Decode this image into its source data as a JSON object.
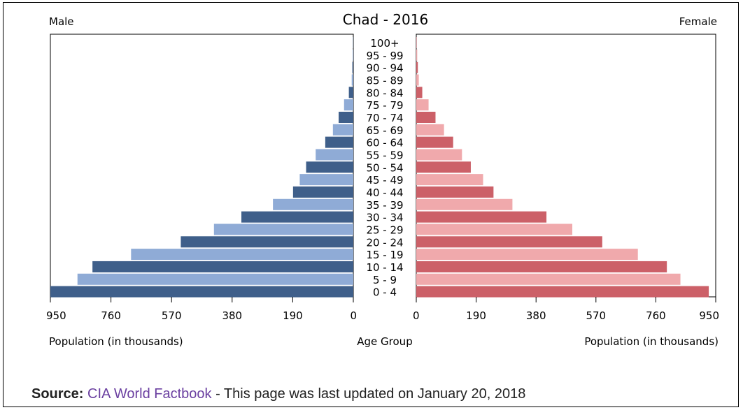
{
  "chart_data": {
    "type": "bar",
    "title": "Chad - 2016",
    "left_label": "Male",
    "right_label": "Female",
    "center_label": "Age Group",
    "xlabel_left": "Population (in thousands)",
    "xlabel_right": "Population (in thousands)",
    "xlim": [
      0,
      950
    ],
    "ticks": [
      "0",
      "190",
      "380",
      "570",
      "760",
      "950"
    ],
    "tick_values": [
      0,
      190,
      380,
      570,
      760,
      950
    ],
    "categories": [
      "100+",
      "95 - 99",
      "90 - 94",
      "85 - 89",
      "80 - 84",
      "75 - 79",
      "70 - 74",
      "65 - 69",
      "60 - 64",
      "55 - 59",
      "50 - 54",
      "45 - 49",
      "40 - 44",
      "35 - 39",
      "30 - 34",
      "25 - 29",
      "20 - 24",
      "15 - 19",
      "10 - 14",
      "5 - 9",
      "0 - 4"
    ],
    "series": [
      {
        "name": "Male",
        "values": [
          1,
          2,
          3,
          5,
          14,
          29,
          46,
          64,
          88,
          118,
          148,
          168,
          189,
          252,
          351,
          437,
          541,
          697,
          818,
          865,
          950
        ]
      },
      {
        "name": "Female",
        "values": [
          1,
          3,
          5,
          8,
          19,
          39,
          61,
          88,
          117,
          145,
          173,
          212,
          245,
          305,
          413,
          495,
          590,
          703,
          795,
          838,
          928
        ]
      }
    ],
    "colors": {
      "male_dark": "#3f5f8a",
      "male_light": "#8fabd6",
      "female_dark": "#cc6068",
      "female_light": "#f0a9ac"
    }
  },
  "source": {
    "label": "Source:",
    "link_text": "CIA World Factbook",
    "suffix": " - This page was last updated on January 20, 2018"
  }
}
